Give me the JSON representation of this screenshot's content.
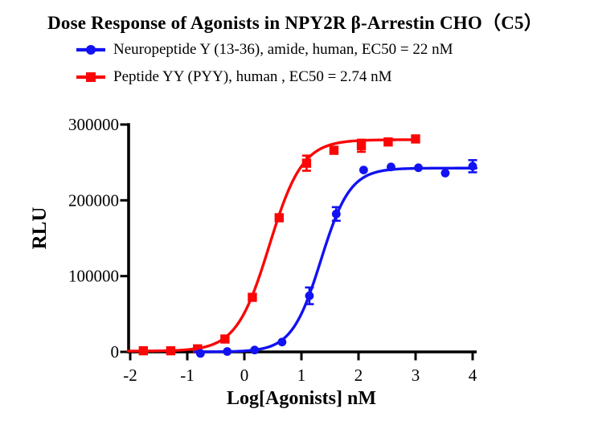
{
  "title": "Dose Response of Agonists in NPY2R β-Arrestin CHO（C5）",
  "chart_data": {
    "type": "line",
    "title": "Dose Response of Agonists in NPY2R β-Arrestin CHO（C5）",
    "xlabel": "Log[Agonists] nM",
    "ylabel": "RLU",
    "xlim": [
      -2,
      4
    ],
    "ylim": [
      0,
      300000
    ],
    "x_ticks": [
      -2,
      -1,
      0,
      1,
      2,
      3,
      4
    ],
    "x_tick_labels": [
      "-2",
      "-1",
      "0",
      "1",
      "2",
      "3",
      "4"
    ],
    "y_ticks": [
      0,
      100000,
      200000,
      300000
    ],
    "y_tick_labels": [
      "0",
      "100000",
      "200000",
      "300000"
    ],
    "grid": false,
    "legend_position": "top-left",
    "series": [
      {
        "name": "neuropeptide-y-13-36",
        "label": "Neuropeptide Y (13-36), amide, human, EC50 = 22 nM",
        "color": "#1212f2",
        "marker": "circle",
        "ec50_nM": 22,
        "x": [
          -0.77,
          -0.3,
          0.18,
          0.66,
          1.14,
          1.61,
          2.09,
          2.57,
          3.05,
          3.52,
          4.0
        ],
        "y": [
          -2000,
          500,
          2500,
          13000,
          74000,
          182000,
          240000,
          244000,
          243000,
          236000,
          245000
        ],
        "err": [
          0,
          0,
          0,
          0,
          11000,
          9000,
          0,
          0,
          0,
          0,
          8000
        ],
        "fit": {
          "bottom": 0,
          "top": 242500,
          "logEC50": 1.342,
          "hill": 1.7,
          "x_start": -0.86,
          "x_end": 4.08
        }
      },
      {
        "name": "peptide-yy",
        "label": "Peptide YY (PYY), human , EC50 = 2.74 nM",
        "color": "#fa0606",
        "marker": "square",
        "ec50_nM": 2.74,
        "x": [
          -1.77,
          -1.29,
          -0.82,
          -0.34,
          0.14,
          0.61,
          1.09,
          1.57,
          2.05,
          2.52,
          3.0
        ],
        "y": [
          1500,
          1500,
          4000,
          17000,
          72000,
          177000,
          249000,
          266000,
          272000,
          277000,
          281000
        ],
        "err": [
          0,
          0,
          0,
          0,
          3000,
          0,
          10000,
          4000,
          8000,
          3000,
          0
        ],
        "fit": {
          "bottom": 1000,
          "top": 280000,
          "logEC50": 0.438,
          "hill": 1.5,
          "x_start": -2.04,
          "x_end": 3.03
        }
      }
    ]
  }
}
